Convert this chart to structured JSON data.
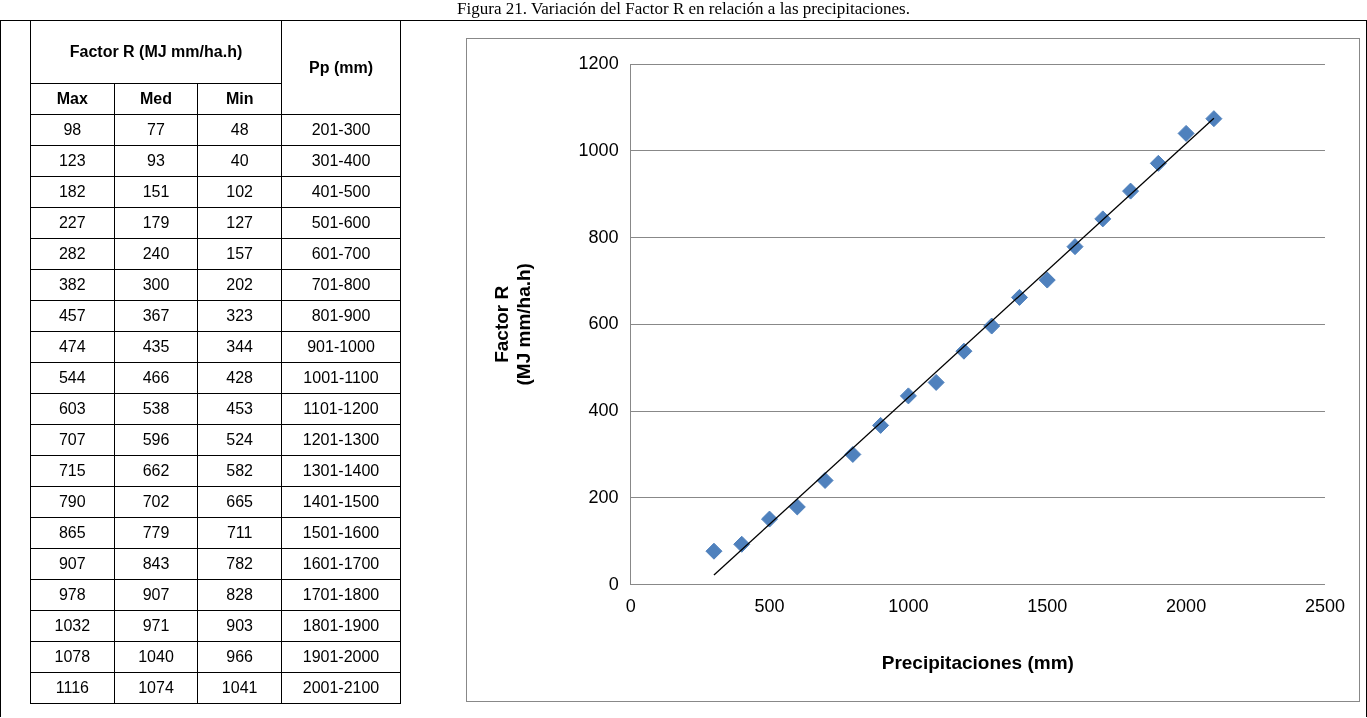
{
  "chart_data": [
    {
      "type": "other",
      "title": "Figura 21. Variación del Factor R en relación a las precipitaciones.",
      "ylabel": "Factor R (MJ mm/ha.h)",
      "xlabel": "Pp (mm)",
      "data_labels": true,
      "categories": [
        "201-300",
        "301-400",
        "401-500",
        "501-600",
        "601-700",
        "701-800",
        "801-900",
        "901-1000",
        "1001-1100",
        "1101-1200",
        "1201-1300",
        "1301-1400",
        "1401-1500",
        "1501-1600",
        "1601-1700",
        "1701-1800",
        "1801-1900",
        "1901-2000",
        "2001-2100"
      ],
      "series": [
        {
          "name": "Max",
          "values": [
            98,
            123,
            182,
            227,
            282,
            382,
            457,
            474,
            544,
            603,
            707,
            715,
            790,
            865,
            907,
            978,
            1032,
            1078,
            1116
          ]
        },
        {
          "name": "Med",
          "values": [
            77,
            93,
            151,
            179,
            240,
            300,
            367,
            435,
            466,
            538,
            596,
            662,
            702,
            779,
            843,
            907,
            971,
            1040,
            1074
          ]
        },
        {
          "name": "Min",
          "values": [
            48,
            40,
            102,
            127,
            157,
            202,
            323,
            344,
            428,
            453,
            524,
            582,
            665,
            711,
            782,
            828,
            903,
            966,
            1041
          ]
        }
      ]
    },
    {
      "type": "scatter",
      "xlabel": "Precipitaciones (mm)",
      "ylabel": "Factor R\n(MJ mm/ha.h)",
      "marker": "diamond",
      "grid": "y",
      "legend": false,
      "xlim": [
        0,
        2500
      ],
      "xticks": [
        0,
        500,
        1000,
        1500,
        2000,
        2500
      ],
      "ylim": [
        0,
        1200
      ],
      "yticks": [
        0,
        200,
        400,
        600,
        800,
        1000,
        1200
      ],
      "series": [
        {
          "color": "#4f81bd",
          "x": [
            300,
            400,
            500,
            600,
            700,
            800,
            900,
            1000,
            1100,
            1200,
            1300,
            1400,
            1500,
            1600,
            1700,
            1800,
            1900,
            2000,
            2100
          ],
          "values": [
            77,
            93,
            151,
            179,
            240,
            300,
            367,
            435,
            466,
            538,
            596,
            662,
            702,
            779,
            843,
            907,
            971,
            1040,
            1074
          ]
        },
        {
          "type": "line",
          "marker": "none",
          "color": "#000000",
          "x": [
            300,
            2100
          ],
          "values": [
            22,
            1075
          ]
        }
      ]
    }
  ]
}
